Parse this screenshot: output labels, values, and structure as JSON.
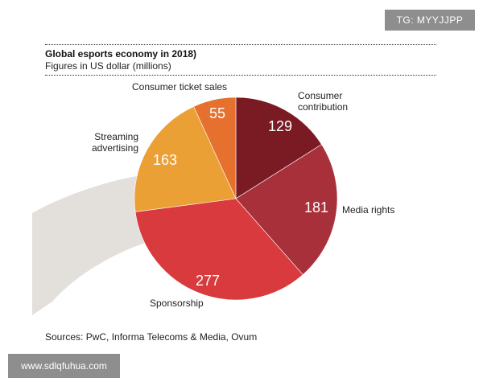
{
  "watermark_top": "TG: MYYJJPP",
  "watermark_bottom": "www.sdlqfuhua.com",
  "header": {
    "title": "Global esports economy in 2018)",
    "subtitle": "Figures in US dollar (millions)"
  },
  "source": "Sources: PwC, Informa Telecoms & Media, Ovum",
  "chart_data": {
    "type": "pie",
    "title": "Global esports economy in 2018)",
    "units": "US dollar (millions)",
    "slices": [
      {
        "label_lines": [
          "Consumer",
          "contribution"
        ],
        "value": 129,
        "color": "#7a1a22"
      },
      {
        "label_lines": [
          "Media rights"
        ],
        "value": 181,
        "color": "#a8303a"
      },
      {
        "label_lines": [
          "Sponsorship"
        ],
        "value": 277,
        "color": "#d93a3e"
      },
      {
        "label_lines": [
          "Streaming",
          "advertising"
        ],
        "value": 163,
        "color": "#eba036"
      },
      {
        "label_lines": [
          "Consumer ticket sales"
        ],
        "value": 55,
        "color": "#e6702e"
      }
    ]
  }
}
